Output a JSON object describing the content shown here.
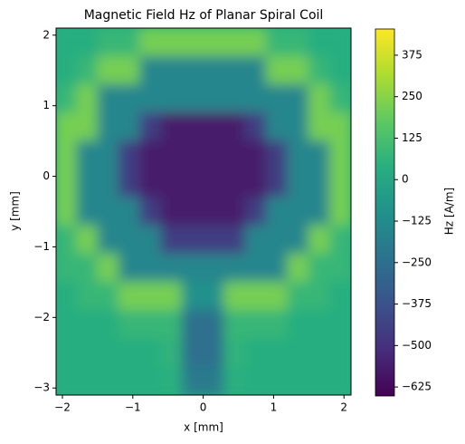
{
  "chart_data": {
    "type": "heatmap",
    "title": "Magnetic Field Hz of Planar Spiral Coil",
    "x_label": "x [mm]",
    "y_label": "y [mm]",
    "colorbar_label": "Hz [A/m]",
    "colormap": "viridis",
    "x": [
      -1.95,
      -1.65,
      -1.35,
      -1.05,
      -0.75,
      -0.45,
      -0.15,
      0.15,
      0.45,
      0.75,
      1.05,
      1.35,
      1.65,
      1.95
    ],
    "y": [
      1.9,
      1.5,
      1.1,
      0.7,
      0.3,
      -0.1,
      -0.5,
      -0.9,
      -1.3,
      -1.7,
      -2.1,
      -2.5,
      -2.9
    ],
    "z": [
      [
        40,
        40,
        80,
        80,
        220,
        220,
        220,
        220,
        220,
        220,
        80,
        80,
        40,
        40
      ],
      [
        40,
        80,
        220,
        220,
        -150,
        -150,
        -150,
        -150,
        -150,
        -150,
        220,
        220,
        80,
        40
      ],
      [
        80,
        220,
        -150,
        -150,
        -150,
        -150,
        -150,
        -150,
        -150,
        -150,
        -150,
        -150,
        220,
        80
      ],
      [
        220,
        220,
        -150,
        -150,
        -450,
        -570,
        -570,
        -570,
        -570,
        -450,
        -150,
        -150,
        220,
        220
      ],
      [
        220,
        -150,
        -150,
        -450,
        -570,
        -570,
        -570,
        -570,
        -570,
        -570,
        -450,
        -150,
        -150,
        220
      ],
      [
        220,
        -150,
        -150,
        -450,
        -570,
        -570,
        -570,
        -570,
        -570,
        -570,
        -450,
        -150,
        -150,
        220
      ],
      [
        220,
        -150,
        -150,
        -150,
        -450,
        -570,
        -570,
        -570,
        -570,
        -450,
        -150,
        -150,
        -150,
        220
      ],
      [
        80,
        220,
        -150,
        -150,
        -150,
        -450,
        -450,
        -450,
        -450,
        -150,
        -150,
        -150,
        220,
        80
      ],
      [
        80,
        80,
        220,
        -150,
        -150,
        -150,
        -150,
        -150,
        -150,
        -150,
        -150,
        220,
        80,
        80
      ],
      [
        40,
        80,
        80,
        220,
        220,
        220,
        -100,
        -100,
        220,
        220,
        220,
        80,
        80,
        40
      ],
      [
        40,
        40,
        40,
        80,
        80,
        80,
        -250,
        -250,
        80,
        80,
        80,
        40,
        40,
        40
      ],
      [
        40,
        40,
        40,
        40,
        40,
        60,
        -250,
        -250,
        60,
        40,
        40,
        40,
        40,
        40
      ],
      [
        40,
        40,
        40,
        40,
        40,
        50,
        -200,
        -200,
        50,
        40,
        40,
        40,
        40,
        40
      ]
    ],
    "xlim": [
      -2.09,
      2.1
    ],
    "ylim": [
      -3.1,
      2.1
    ],
    "zlim": [
      -652,
      454
    ],
    "xticks": [
      {
        "value": -2,
        "label": "−2"
      },
      {
        "value": -1,
        "label": "−1"
      },
      0,
      1,
      2
    ],
    "yticks": [
      {
        "value": -3,
        "label": "−3"
      },
      {
        "value": -2,
        "label": "−2"
      },
      {
        "value": -1,
        "label": "−1"
      },
      0,
      1,
      2
    ],
    "zticks": [
      {
        "value": -625,
        "label": "−625"
      },
      {
        "value": -500,
        "label": "−500"
      },
      {
        "value": -375,
        "label": "−375"
      },
      {
        "value": -250,
        "label": "−250"
      },
      {
        "value": -125,
        "label": "−125"
      },
      0,
      125,
      250,
      375
    ]
  }
}
